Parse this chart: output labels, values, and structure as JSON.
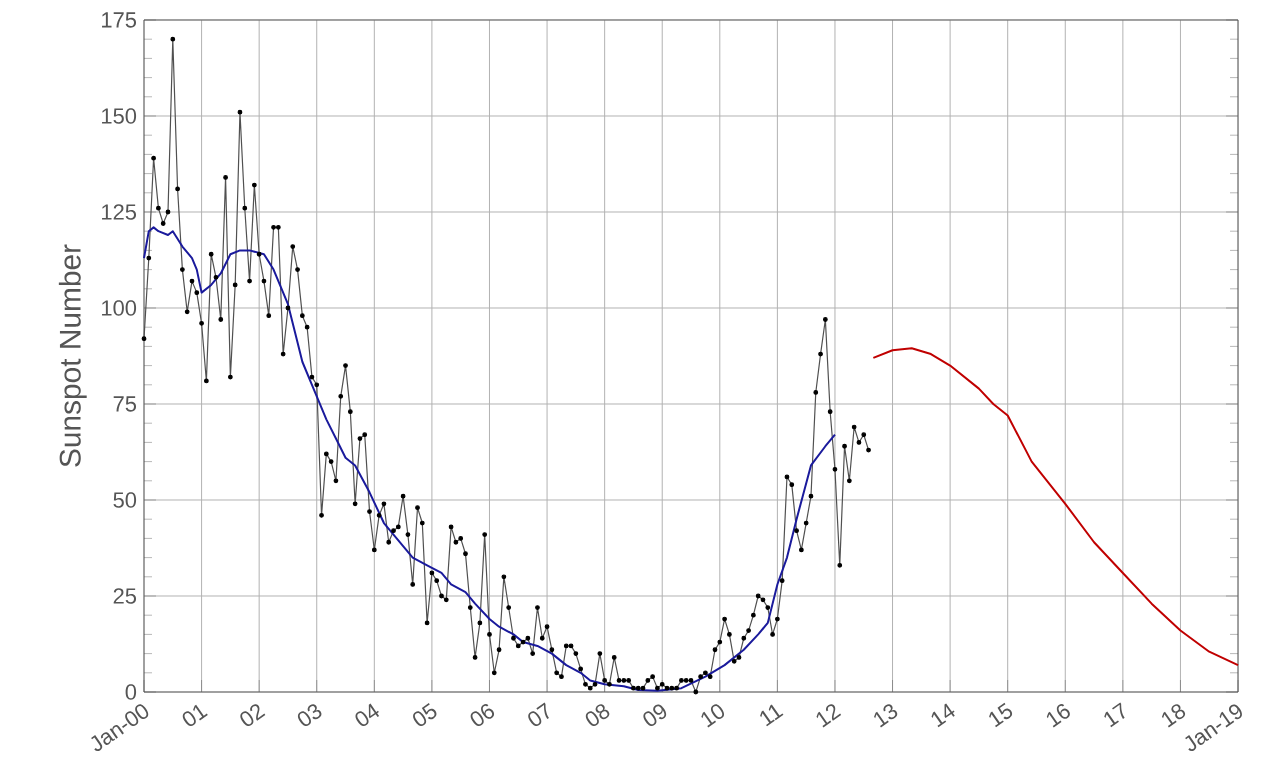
{
  "chart_data": {
    "type": "line",
    "ylabel": "Sunspot Number",
    "xlim": [
      "2000-01",
      "2019-01"
    ],
    "ylim": [
      0,
      175
    ],
    "yticks": [
      0,
      25,
      50,
      75,
      100,
      125,
      150,
      175
    ],
    "xticks": [
      {
        "value": "2000-01",
        "label": "Jan-00"
      },
      {
        "value": "2001-01",
        "label": "01"
      },
      {
        "value": "2002-01",
        "label": "02"
      },
      {
        "value": "2003-01",
        "label": "03"
      },
      {
        "value": "2004-01",
        "label": "04"
      },
      {
        "value": "2005-01",
        "label": "05"
      },
      {
        "value": "2006-01",
        "label": "06"
      },
      {
        "value": "2007-01",
        "label": "07"
      },
      {
        "value": "2008-01",
        "label": "08"
      },
      {
        "value": "2009-01",
        "label": "09"
      },
      {
        "value": "2010-01",
        "label": "10"
      },
      {
        "value": "2011-01",
        "label": "11"
      },
      {
        "value": "2012-01",
        "label": "12"
      },
      {
        "value": "2013-01",
        "label": "13"
      },
      {
        "value": "2014-01",
        "label": "14"
      },
      {
        "value": "2015-01",
        "label": "15"
      },
      {
        "value": "2016-01",
        "label": "16"
      },
      {
        "value": "2017-01",
        "label": "17"
      },
      {
        "value": "2018-01",
        "label": "18"
      },
      {
        "value": "2019-01",
        "label": "Jan-19"
      }
    ],
    "grid": true,
    "series": [
      {
        "color": "#505050",
        "marker": "circle",
        "x": [
          "2000-01",
          "2000-02",
          "2000-03",
          "2000-04",
          "2000-05",
          "2000-06",
          "2000-07",
          "2000-08",
          "2000-09",
          "2000-10",
          "2000-11",
          "2000-12",
          "2001-01",
          "2001-02",
          "2001-03",
          "2001-04",
          "2001-05",
          "2001-06",
          "2001-07",
          "2001-08",
          "2001-09",
          "2001-10",
          "2001-11",
          "2001-12",
          "2002-01",
          "2002-02",
          "2002-03",
          "2002-04",
          "2002-05",
          "2002-06",
          "2002-07",
          "2002-08",
          "2002-09",
          "2002-10",
          "2002-11",
          "2002-12",
          "2003-01",
          "2003-02",
          "2003-03",
          "2003-04",
          "2003-05",
          "2003-06",
          "2003-07",
          "2003-08",
          "2003-09",
          "2003-10",
          "2003-11",
          "2003-12",
          "2004-01",
          "2004-02",
          "2004-03",
          "2004-04",
          "2004-05",
          "2004-06",
          "2004-07",
          "2004-08",
          "2004-09",
          "2004-10",
          "2004-11",
          "2004-12",
          "2005-01",
          "2005-02",
          "2005-03",
          "2005-04",
          "2005-05",
          "2005-06",
          "2005-07",
          "2005-08",
          "2005-09",
          "2005-10",
          "2005-11",
          "2005-12",
          "2006-01",
          "2006-02",
          "2006-03",
          "2006-04",
          "2006-05",
          "2006-06",
          "2006-07",
          "2006-08",
          "2006-09",
          "2006-10",
          "2006-11",
          "2006-12",
          "2007-01",
          "2007-02",
          "2007-03",
          "2007-04",
          "2007-05",
          "2007-06",
          "2007-07",
          "2007-08",
          "2007-09",
          "2007-10",
          "2007-11",
          "2007-12",
          "2008-01",
          "2008-02",
          "2008-03",
          "2008-04",
          "2008-05",
          "2008-06",
          "2008-07",
          "2008-08",
          "2008-09",
          "2008-10",
          "2008-11",
          "2008-12",
          "2009-01",
          "2009-02",
          "2009-03",
          "2009-04",
          "2009-05",
          "2009-06",
          "2009-07",
          "2009-08",
          "2009-09",
          "2009-10",
          "2009-11",
          "2009-12",
          "2010-01",
          "2010-02",
          "2010-03",
          "2010-04",
          "2010-05",
          "2010-06",
          "2010-07",
          "2010-08",
          "2010-09",
          "2010-10",
          "2010-11",
          "2010-12",
          "2011-01",
          "2011-02",
          "2011-03",
          "2011-04",
          "2011-05",
          "2011-06",
          "2011-07",
          "2011-08",
          "2011-09",
          "2011-10",
          "2011-11",
          "2011-12",
          "2012-01",
          "2012-02",
          "2012-03",
          "2012-04",
          "2012-05",
          "2012-06",
          "2012-07",
          "2012-08"
        ],
        "values": [
          92,
          113,
          139,
          126,
          122,
          125,
          170,
          131,
          110,
          99,
          107,
          104,
          96,
          81,
          114,
          108,
          97,
          134,
          82,
          106,
          151,
          126,
          107,
          132,
          114,
          107,
          98,
          121,
          121,
          88,
          100,
          116,
          110,
          98,
          95,
          82,
          80,
          46,
          62,
          60,
          55,
          77,
          85,
          73,
          49,
          66,
          67,
          47,
          37,
          46,
          49,
          39,
          42,
          43,
          51,
          41,
          28,
          48,
          44,
          18,
          31,
          29,
          25,
          24,
          43,
          39,
          40,
          36,
          22,
          9,
          18,
          41,
          15,
          5,
          11,
          30,
          22,
          14,
          12,
          13,
          14,
          10,
          22,
          14,
          17,
          11,
          5,
          4,
          12,
          12,
          10,
          6,
          2,
          1,
          2,
          10,
          3,
          2,
          9,
          3,
          3,
          3,
          1,
          1,
          1,
          3,
          4,
          1,
          2,
          1,
          1,
          1,
          3,
          3,
          3,
          0,
          4,
          5,
          4,
          11,
          13,
          19,
          15,
          8,
          9,
          14,
          16,
          20,
          25,
          24,
          22,
          15,
          19,
          29,
          56,
          54,
          42,
          37,
          44,
          51,
          78,
          88,
          97,
          73,
          58,
          33,
          64,
          55,
          69,
          65,
          67,
          63
        ]
      },
      {
        "color": "#1a1a9c",
        "marker": "none",
        "x": [
          "2000-01",
          "2000-02",
          "2000-03",
          "2000-04",
          "2000-06",
          "2000-07",
          "2000-09",
          "2000-11",
          "2000-12",
          "2001-01",
          "2001-03",
          "2001-05",
          "2001-07",
          "2001-09",
          "2001-11",
          "2002-02",
          "2002-04",
          "2002-07",
          "2002-09",
          "2002-10",
          "2002-12",
          "2003-03",
          "2003-05",
          "2003-07",
          "2003-09",
          "2003-12",
          "2004-03",
          "2004-05",
          "2004-07",
          "2004-09",
          "2004-12",
          "2005-03",
          "2005-05",
          "2005-08",
          "2005-10",
          "2006-01",
          "2006-03",
          "2006-06",
          "2006-08",
          "2006-11",
          "2007-02",
          "2007-05",
          "2007-08",
          "2007-10",
          "2008-01",
          "2008-05",
          "2008-08",
          "2008-12",
          "2009-05",
          "2009-10",
          "2010-02",
          "2010-06",
          "2010-09",
          "2010-11",
          "2011-01",
          "2011-03",
          "2011-05",
          "2011-08",
          "2011-11",
          "2012-01"
        ],
        "values": [
          113,
          120,
          121,
          120,
          119,
          120,
          116,
          113,
          110,
          104,
          106,
          109,
          114,
          115,
          115,
          114,
          110,
          101,
          91,
          86,
          80,
          71,
          66,
          61,
          59,
          52,
          44,
          41,
          38,
          35,
          33,
          31,
          28,
          26,
          23,
          19,
          17,
          15,
          13,
          12,
          10,
          7,
          5,
          3,
          2,
          1.5,
          0.5,
          0.3,
          1,
          4,
          7,
          11,
          15,
          18,
          28,
          35,
          45,
          59,
          64,
          67
        ]
      },
      {
        "color": "#c00000",
        "marker": "none",
        "x": [
          "2012-09",
          "2013-01",
          "2013-05",
          "2013-09",
          "2014-01",
          "2014-07",
          "2014-10",
          "2015-01",
          "2015-06",
          "2016-01",
          "2016-07",
          "2017-01",
          "2017-07",
          "2018-01",
          "2018-07",
          "2019-01"
        ],
        "values": [
          87,
          89,
          89.5,
          88,
          85,
          79,
          75,
          72,
          60,
          49,
          39,
          31,
          23,
          16,
          10.5,
          7
        ]
      }
    ]
  }
}
